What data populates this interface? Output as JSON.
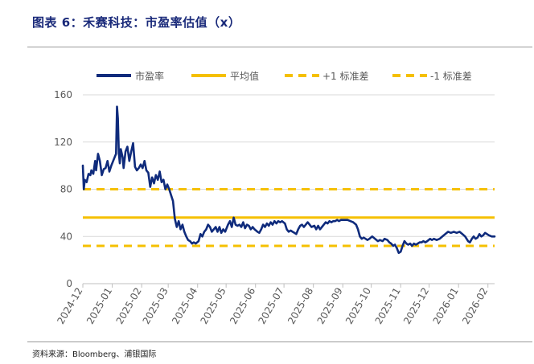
{
  "figure": {
    "title": "图表 6：禾赛科技：市盈率估值（x）",
    "source": "资料来源：Bloomberg、浦银国际"
  },
  "colors": {
    "pe": "#0f2b7c",
    "band": "#f5c000",
    "grid": "#d9d9d9",
    "axis": "#bfbfbf"
  },
  "chart_data": {
    "type": "line",
    "title": "禾赛科技：市盈率估值（x）",
    "ylim": [
      0,
      160
    ],
    "yticks": [
      0,
      40,
      80,
      120,
      160
    ],
    "xlim": [
      "2024-12-01",
      "2026-02-08"
    ],
    "xticks": [
      "2024-12",
      "2025-01",
      "2025-02",
      "2025-03",
      "2025-04",
      "2025-05",
      "2025-06",
      "2025-07",
      "2025-08",
      "2025-09",
      "2025-10",
      "2025-11",
      "2025-12",
      "2026-01",
      "2026-02"
    ],
    "legend": [
      "市盈率",
      "平均值",
      "+1 标准差",
      "-1 标准差"
    ],
    "mean": 56,
    "plus_1_std": 80,
    "minus_1_std": 32,
    "series": [
      {
        "name": "市盈率",
        "points": [
          [
            "2024-12-01",
            100
          ],
          [
            "2024-12-02",
            80
          ],
          [
            "2024-12-03",
            88
          ],
          [
            "2024-12-05",
            86
          ],
          [
            "2024-12-07",
            93
          ],
          [
            "2024-12-09",
            92
          ],
          [
            "2024-12-10",
            96
          ],
          [
            "2024-12-12",
            93
          ],
          [
            "2024-12-14",
            104
          ],
          [
            "2024-12-15",
            96
          ],
          [
            "2024-12-17",
            110
          ],
          [
            "2024-12-19",
            104
          ],
          [
            "2024-12-21",
            92
          ],
          [
            "2024-12-23",
            97
          ],
          [
            "2024-12-25",
            98
          ],
          [
            "2024-12-27",
            104
          ],
          [
            "2024-12-29",
            95
          ],
          [
            "2024-12-31",
            100
          ],
          [
            "2025-01-03",
            106
          ],
          [
            "2025-01-05",
            110
          ],
          [
            "2025-01-06",
            150
          ],
          [
            "2025-01-07",
            140
          ],
          [
            "2025-01-08",
            110
          ],
          [
            "2025-01-09",
            102
          ],
          [
            "2025-01-10",
            114
          ],
          [
            "2025-01-12",
            107
          ],
          [
            "2025-01-13",
            98
          ],
          [
            "2025-01-15",
            112
          ],
          [
            "2025-01-17",
            116
          ],
          [
            "2025-01-19",
            104
          ],
          [
            "2025-01-21",
            112
          ],
          [
            "2025-01-23",
            119
          ],
          [
            "2025-01-25",
            99
          ],
          [
            "2025-01-27",
            96
          ],
          [
            "2025-01-29",
            98
          ],
          [
            "2025-01-31",
            101
          ],
          [
            "2025-02-02",
            98
          ],
          [
            "2025-02-04",
            104
          ],
          [
            "2025-02-06",
            96
          ],
          [
            "2025-02-08",
            94
          ],
          [
            "2025-02-10",
            82
          ],
          [
            "2025-02-12",
            90
          ],
          [
            "2025-02-14",
            85
          ],
          [
            "2025-02-16",
            92
          ],
          [
            "2025-02-18",
            88
          ],
          [
            "2025-02-20",
            95
          ],
          [
            "2025-02-22",
            86
          ],
          [
            "2025-02-24",
            88
          ],
          [
            "2025-02-26",
            80
          ],
          [
            "2025-02-28",
            84
          ],
          [
            "2025-03-02",
            80
          ],
          [
            "2025-03-04",
            75
          ],
          [
            "2025-03-06",
            70
          ],
          [
            "2025-03-08",
            55
          ],
          [
            "2025-03-10",
            48
          ],
          [
            "2025-03-12",
            53
          ],
          [
            "2025-03-14",
            46
          ],
          [
            "2025-03-16",
            50
          ],
          [
            "2025-03-18",
            44
          ],
          [
            "2025-03-20",
            40
          ],
          [
            "2025-03-22",
            37
          ],
          [
            "2025-03-24",
            36
          ],
          [
            "2025-03-26",
            34
          ],
          [
            "2025-03-28",
            35
          ],
          [
            "2025-03-30",
            34
          ],
          [
            "2025-04-02",
            36
          ],
          [
            "2025-04-04",
            42
          ],
          [
            "2025-04-06",
            40
          ],
          [
            "2025-04-08",
            44
          ],
          [
            "2025-04-10",
            46
          ],
          [
            "2025-04-12",
            50
          ],
          [
            "2025-04-14",
            48
          ],
          [
            "2025-04-16",
            44
          ],
          [
            "2025-04-18",
            46
          ],
          [
            "2025-04-20",
            48
          ],
          [
            "2025-04-22",
            44
          ],
          [
            "2025-04-24",
            48
          ],
          [
            "2025-04-26",
            43
          ],
          [
            "2025-04-28",
            46
          ],
          [
            "2025-04-30",
            44
          ],
          [
            "2025-05-03",
            50
          ],
          [
            "2025-05-05",
            53
          ],
          [
            "2025-05-07",
            48
          ],
          [
            "2025-05-09",
            56
          ],
          [
            "2025-05-11",
            50
          ],
          [
            "2025-05-13",
            49
          ],
          [
            "2025-05-15",
            50
          ],
          [
            "2025-05-17",
            48
          ],
          [
            "2025-05-19",
            52
          ],
          [
            "2025-05-21",
            47
          ],
          [
            "2025-05-23",
            50
          ],
          [
            "2025-05-25",
            49
          ],
          [
            "2025-05-27",
            46
          ],
          [
            "2025-05-29",
            48
          ],
          [
            "2025-05-31",
            46
          ],
          [
            "2025-06-03",
            44
          ],
          [
            "2025-06-05",
            43
          ],
          [
            "2025-06-07",
            46
          ],
          [
            "2025-06-09",
            50
          ],
          [
            "2025-06-11",
            48
          ],
          [
            "2025-06-13",
            51
          ],
          [
            "2025-06-15",
            49
          ],
          [
            "2025-06-17",
            52
          ],
          [
            "2025-06-19",
            50
          ],
          [
            "2025-06-21",
            53
          ],
          [
            "2025-06-23",
            51
          ],
          [
            "2025-06-25",
            53
          ],
          [
            "2025-06-27",
            52
          ],
          [
            "2025-06-29",
            53
          ],
          [
            "2025-07-02",
            51
          ],
          [
            "2025-07-04",
            46
          ],
          [
            "2025-07-06",
            44
          ],
          [
            "2025-07-08",
            45
          ],
          [
            "2025-07-10",
            44
          ],
          [
            "2025-07-12",
            43
          ],
          [
            "2025-07-14",
            42
          ],
          [
            "2025-07-16",
            46
          ],
          [
            "2025-07-18",
            49
          ],
          [
            "2025-07-20",
            50
          ],
          [
            "2025-07-22",
            48
          ],
          [
            "2025-07-24",
            50
          ],
          [
            "2025-07-26",
            52
          ],
          [
            "2025-07-28",
            50
          ],
          [
            "2025-07-30",
            48
          ],
          [
            "2025-08-02",
            49
          ],
          [
            "2025-08-04",
            46
          ],
          [
            "2025-08-06",
            49
          ],
          [
            "2025-08-08",
            46
          ],
          [
            "2025-08-10",
            48
          ],
          [
            "2025-08-12",
            50
          ],
          [
            "2025-08-14",
            52
          ],
          [
            "2025-08-16",
            51
          ],
          [
            "2025-08-18",
            53
          ],
          [
            "2025-08-20",
            52
          ],
          [
            "2025-08-22",
            53
          ],
          [
            "2025-08-24",
            53
          ],
          [
            "2025-08-26",
            54
          ],
          [
            "2025-08-28",
            53
          ],
          [
            "2025-08-30",
            54
          ],
          [
            "2025-09-03",
            54
          ],
          [
            "2025-09-06",
            54
          ],
          [
            "2025-09-09",
            53
          ],
          [
            "2025-09-12",
            52
          ],
          [
            "2025-09-15",
            50
          ],
          [
            "2025-09-17",
            46
          ],
          [
            "2025-09-19",
            40
          ],
          [
            "2025-09-21",
            38
          ],
          [
            "2025-09-23",
            39
          ],
          [
            "2025-09-25",
            38
          ],
          [
            "2025-09-27",
            37
          ],
          [
            "2025-09-29",
            38
          ],
          [
            "2025-10-02",
            40
          ],
          [
            "2025-10-05",
            38
          ],
          [
            "2025-10-08",
            36
          ],
          [
            "2025-10-10",
            37
          ],
          [
            "2025-10-13",
            36
          ],
          [
            "2025-10-15",
            38
          ],
          [
            "2025-10-18",
            37
          ],
          [
            "2025-10-20",
            35
          ],
          [
            "2025-10-22",
            34
          ],
          [
            "2025-10-24",
            32
          ],
          [
            "2025-10-26",
            33
          ],
          [
            "2025-10-28",
            30
          ],
          [
            "2025-10-30",
            26
          ],
          [
            "2025-11-01",
            27
          ],
          [
            "2025-11-03",
            32
          ],
          [
            "2025-11-05",
            36
          ],
          [
            "2025-11-07",
            34
          ],
          [
            "2025-11-09",
            33
          ],
          [
            "2025-11-11",
            34
          ],
          [
            "2025-11-13",
            32
          ],
          [
            "2025-11-15",
            34
          ],
          [
            "2025-11-17",
            33
          ],
          [
            "2025-11-19",
            34
          ],
          [
            "2025-11-21",
            35
          ],
          [
            "2025-11-23",
            35
          ],
          [
            "2025-11-25",
            36
          ],
          [
            "2025-11-27",
            35
          ],
          [
            "2025-11-29",
            36
          ],
          [
            "2025-12-02",
            38
          ],
          [
            "2025-12-04",
            37
          ],
          [
            "2025-12-06",
            38
          ],
          [
            "2025-12-09",
            37
          ],
          [
            "2025-12-12",
            38
          ],
          [
            "2025-12-15",
            40
          ],
          [
            "2025-12-18",
            42
          ],
          [
            "2025-12-21",
            44
          ],
          [
            "2025-12-24",
            43
          ],
          [
            "2025-12-27",
            44
          ],
          [
            "2025-12-30",
            43
          ],
          [
            "2026-01-02",
            44
          ],
          [
            "2026-01-05",
            42
          ],
          [
            "2026-01-08",
            40
          ],
          [
            "2026-01-11",
            36
          ],
          [
            "2026-01-13",
            35
          ],
          [
            "2026-01-15",
            38
          ],
          [
            "2026-01-17",
            40
          ],
          [
            "2026-01-19",
            38
          ],
          [
            "2026-01-21",
            39
          ],
          [
            "2026-01-23",
            42
          ],
          [
            "2026-01-25",
            40
          ],
          [
            "2026-01-27",
            41
          ],
          [
            "2026-01-29",
            43
          ],
          [
            "2026-01-31",
            42
          ],
          [
            "2026-02-02",
            41
          ],
          [
            "2026-02-05",
            40
          ],
          [
            "2026-02-08",
            40
          ]
        ]
      }
    ]
  }
}
